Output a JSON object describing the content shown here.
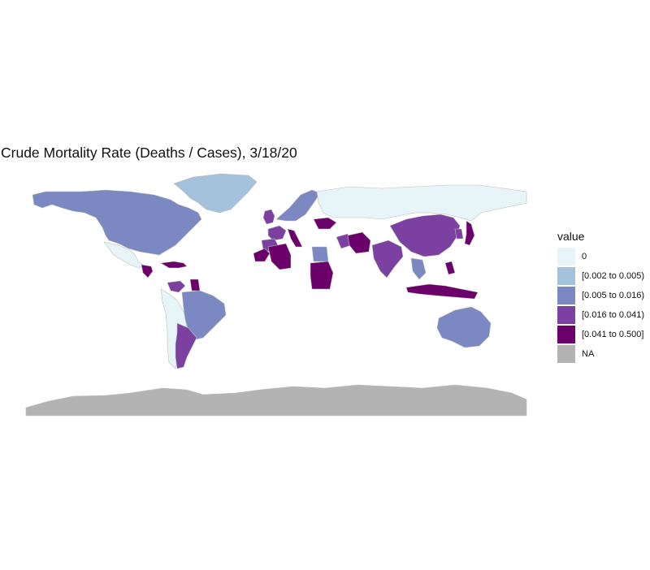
{
  "title": "Crude Mortality Rate (Deaths / Cases), 3/18/20",
  "legend": {
    "title": "value",
    "items": [
      {
        "label": "0",
        "color": "#e8f5f8"
      },
      {
        "label": "[0.002 to 0.005)",
        "color": "#a5c2dd"
      },
      {
        "label": "[0.005 to 0.016)",
        "color": "#7b88c2"
      },
      {
        "label": "[0.016 to 0.041)",
        "color": "#7b40a0"
      },
      {
        "label": "[0.041 to 0.500]",
        "color": "#6b006b"
      },
      {
        "label": "NA",
        "color": "#b3b3b3"
      }
    ]
  },
  "map_data": {
    "type": "choropleth",
    "projection": "equirectangular",
    "date": "3/18/20",
    "regions": [
      {
        "name": "North America (USA/Canada)",
        "class": "[0.005 to 0.016)"
      },
      {
        "name": "Greenland",
        "class": "[0.002 to 0.005)"
      },
      {
        "name": "Mexico",
        "class": "0"
      },
      {
        "name": "Central America",
        "class": "[0.041 to 0.500]"
      },
      {
        "name": "Caribbean",
        "class": "[0.041 to 0.500]"
      },
      {
        "name": "Brazil",
        "class": "[0.005 to 0.016)"
      },
      {
        "name": "Argentina",
        "class": "[0.016 to 0.041)"
      },
      {
        "name": "Venezuela",
        "class": "[0.016 to 0.041)"
      },
      {
        "name": "Guyana",
        "class": "[0.041 to 0.500]"
      },
      {
        "name": "Peru/Bolivia/Chile",
        "class": "0"
      },
      {
        "name": "Scandinavia",
        "class": "[0.005 to 0.016)"
      },
      {
        "name": "United Kingdom",
        "class": "[0.016 to 0.041)"
      },
      {
        "name": "France",
        "class": "[0.016 to 0.041)"
      },
      {
        "name": "Spain",
        "class": "[0.016 to 0.041)"
      },
      {
        "name": "Italy",
        "class": "[0.041 to 0.500]"
      },
      {
        "name": "Ukraine",
        "class": "[0.041 to 0.500]"
      },
      {
        "name": "Russia",
        "class": "0"
      },
      {
        "name": "Morocco",
        "class": "[0.041 to 0.500]"
      },
      {
        "name": "Algeria",
        "class": "[0.041 to 0.500]"
      },
      {
        "name": "Egypt",
        "class": "[0.005 to 0.016)"
      },
      {
        "name": "Sudan",
        "class": "[0.041 to 0.500]"
      },
      {
        "name": "Iran",
        "class": "[0.041 to 0.500]"
      },
      {
        "name": "Iraq",
        "class": "[0.016 to 0.041)"
      },
      {
        "name": "India",
        "class": "[0.016 to 0.041)"
      },
      {
        "name": "China",
        "class": "[0.016 to 0.041)"
      },
      {
        "name": "Japan",
        "class": "[0.041 to 0.500]"
      },
      {
        "name": "Korea",
        "class": "[0.016 to 0.041)"
      },
      {
        "name": "Indonesia",
        "class": "[0.041 to 0.500]"
      },
      {
        "name": "Philippines",
        "class": "[0.041 to 0.500]"
      },
      {
        "name": "Thailand",
        "class": "[0.005 to 0.016)"
      },
      {
        "name": "Australia",
        "class": "[0.005 to 0.016)"
      },
      {
        "name": "Antarctica",
        "class": "NA"
      }
    ]
  }
}
